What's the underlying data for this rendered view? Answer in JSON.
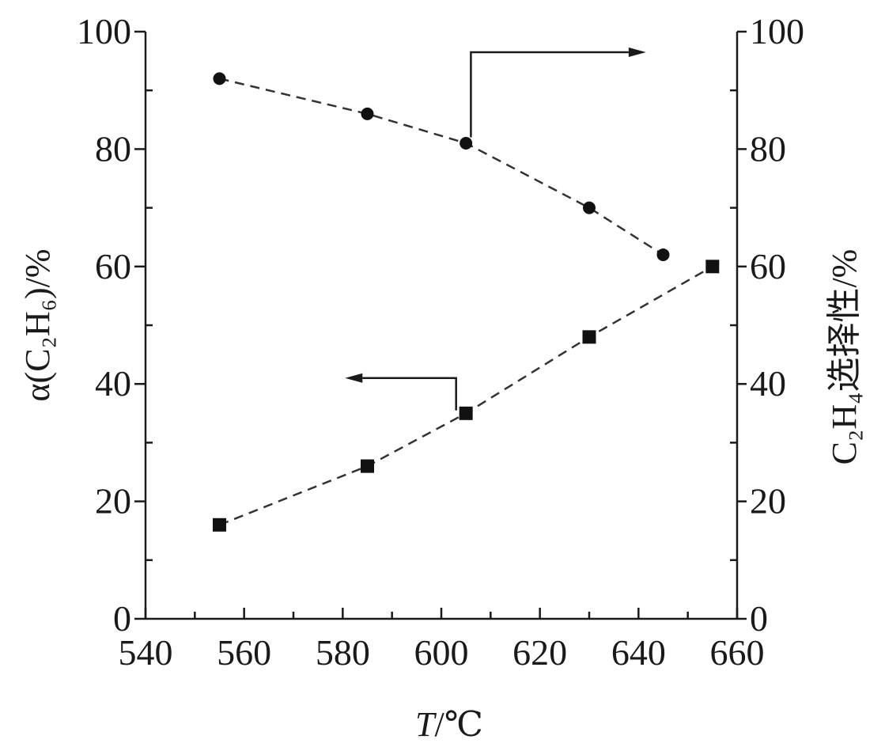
{
  "chart_data": {
    "type": "scatter",
    "x_axis": {
      "label_italic": "T",
      "label_rest": "/℃",
      "range": [
        540,
        660
      ],
      "major_ticks": [
        540,
        560,
        580,
        600,
        620,
        640,
        660
      ],
      "minor_step": 10
    },
    "y_left": {
      "label": "α(C₂H₆)/%",
      "range": [
        0,
        100
      ],
      "major_ticks": [
        0,
        20,
        40,
        60,
        80,
        100
      ],
      "minor_step": 10
    },
    "y_right": {
      "label": "C₂H₄选择性/%",
      "range": [
        0,
        100
      ],
      "major_ticks": [
        0,
        20,
        40,
        60,
        80,
        100
      ],
      "minor_step": 10
    },
    "series": [
      {
        "axis": "left",
        "marker": "square",
        "x": [
          555,
          585,
          605,
          630,
          655
        ],
        "y": [
          16,
          26,
          35,
          48,
          60
        ]
      },
      {
        "axis": "right",
        "marker": "circle",
        "x": [
          555,
          585,
          605,
          630,
          645
        ],
        "y": [
          92,
          86,
          81,
          70,
          62
        ]
      }
    ],
    "grid": false,
    "legend": "arrows pointing to axes"
  }
}
